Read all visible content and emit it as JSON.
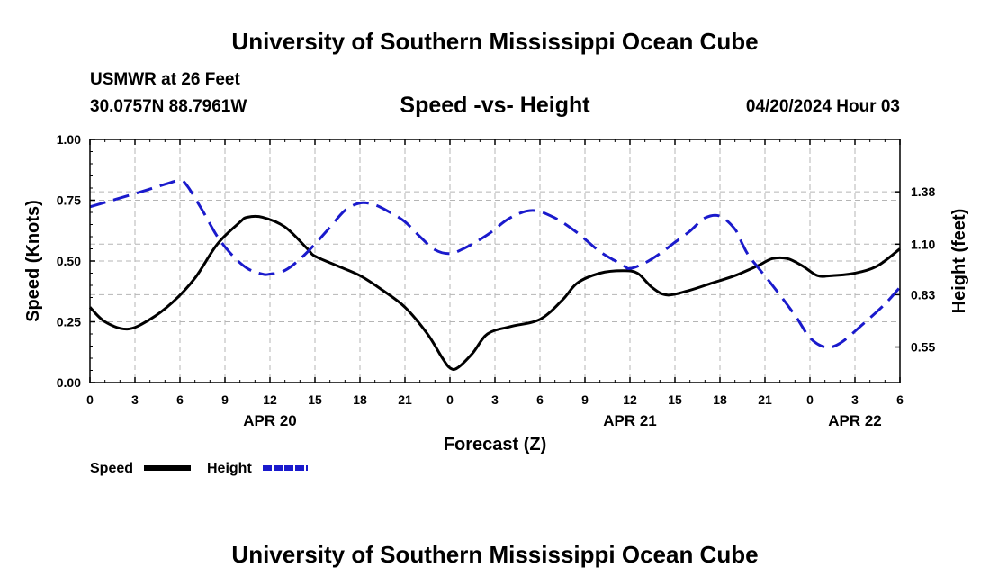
{
  "header": {
    "title": "University of Southern Mississippi Ocean Cube",
    "station": "USMWR at 26 Feet",
    "location": "30.0757N  88.7961W",
    "datetime": "04/20/2024 Hour 03",
    "footer_title": "University of Southern Mississippi Ocean Cube"
  },
  "chart_data": {
    "type": "line",
    "title": "Speed -vs- Height",
    "xlabel": "Forecast (Z)",
    "ylabel": "Speed (Knots)",
    "y2label": "Height (feet)",
    "x_hours_range": [
      0,
      54
    ],
    "x_ticks": [
      "0",
      "3",
      "6",
      "9",
      "12",
      "15",
      "18",
      "21",
      "0",
      "3",
      "6",
      "9",
      "12",
      "15",
      "18",
      "21",
      "0",
      "3",
      "6"
    ],
    "x_tick_hours": [
      0,
      3,
      6,
      9,
      12,
      15,
      18,
      21,
      24,
      27,
      30,
      33,
      36,
      39,
      42,
      45,
      48,
      51,
      54
    ],
    "date_labels": [
      {
        "label": "APR 20",
        "hour": 12
      },
      {
        "label": "APR 21",
        "hour": 36
      },
      {
        "label": "APR 22",
        "hour": 51
      }
    ],
    "ylim": [
      0,
      1
    ],
    "y_ticks": [
      0,
      0.25,
      0.5,
      0.75,
      1.0
    ],
    "y_tick_labels": [
      "0.00",
      "0.25",
      "0.50",
      "0.75",
      "1.00"
    ],
    "y2lim": [
      0.36,
      1.66
    ],
    "y2_ticks": [
      0.55,
      0.83,
      1.1,
      1.38
    ],
    "y2_tick_labels": [
      "0.55",
      "0.83",
      "1.10",
      "1.38"
    ],
    "grid": true,
    "legend_position": "bottom-left",
    "series": [
      {
        "name": "Speed",
        "axis": "left",
        "color": "#000000",
        "style": "solid",
        "x": [
          0,
          1,
          2.5,
          4,
          5.5,
          7,
          8.5,
          10,
          10.5,
          11.5,
          13,
          14.5,
          15,
          16.5,
          18,
          19.5,
          21,
          22.5,
          23.5,
          24,
          24.5,
          25.5,
          26.5,
          28,
          30,
          31.5,
          32.5,
          34,
          35.5,
          36.5,
          37.5,
          38.5,
          40,
          41.5,
          43,
          44.5,
          45.5,
          46.5,
          47.5,
          48.5,
          49.5,
          51,
          52.5,
          54
        ],
        "y": [
          0.31,
          0.25,
          0.22,
          0.26,
          0.33,
          0.43,
          0.57,
          0.66,
          0.68,
          0.68,
          0.64,
          0.55,
          0.52,
          0.48,
          0.44,
          0.38,
          0.31,
          0.2,
          0.1,
          0.06,
          0.06,
          0.12,
          0.2,
          0.23,
          0.26,
          0.34,
          0.41,
          0.45,
          0.46,
          0.45,
          0.39,
          0.36,
          0.38,
          0.41,
          0.44,
          0.48,
          0.51,
          0.51,
          0.48,
          0.44,
          0.44,
          0.45,
          0.48,
          0.55
        ]
      },
      {
        "name": "Height",
        "axis": "right",
        "color": "#1a1acc",
        "style": "dashed",
        "x": [
          0,
          3,
          5,
          6,
          6.5,
          7.5,
          8.5,
          9.5,
          10.5,
          11.5,
          12,
          13,
          14,
          15,
          16,
          17,
          18,
          19,
          20,
          21,
          22,
          23,
          24,
          25,
          26.5,
          28,
          29.5,
          31,
          32.5,
          34,
          35.5,
          36,
          37,
          38,
          39,
          40,
          41,
          42,
          43,
          43.5,
          44,
          45.5,
          47,
          48,
          49,
          50,
          51.5,
          53,
          54
        ],
        "y": [
          1.3,
          1.37,
          1.42,
          1.44,
          1.41,
          1.28,
          1.14,
          1.04,
          0.97,
          0.94,
          0.94,
          0.96,
          1.02,
          1.1,
          1.19,
          1.28,
          1.32,
          1.31,
          1.27,
          1.22,
          1.14,
          1.07,
          1.05,
          1.08,
          1.15,
          1.24,
          1.28,
          1.24,
          1.16,
          1.06,
          0.99,
          0.97,
          1.0,
          1.05,
          1.11,
          1.17,
          1.24,
          1.25,
          1.18,
          1.1,
          1.03,
          0.88,
          0.72,
          0.6,
          0.55,
          0.57,
          0.67,
          0.78,
          0.87
        ]
      }
    ]
  }
}
